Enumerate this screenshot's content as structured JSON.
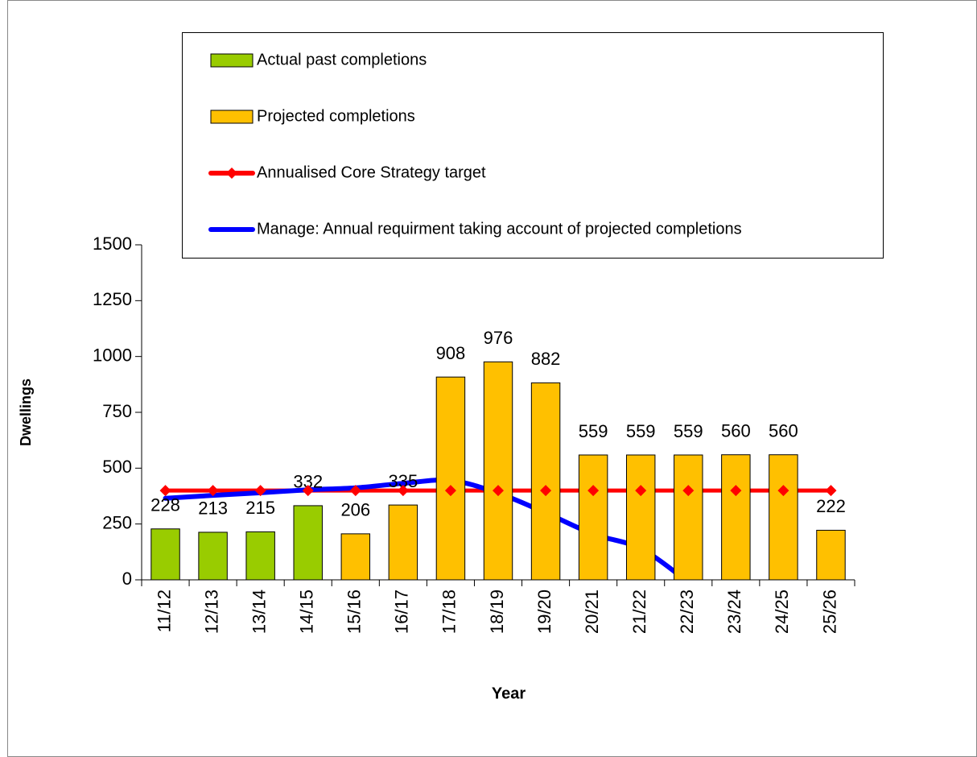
{
  "chart_data": {
    "type": "bar",
    "x_label": "Year",
    "y_label": "Dwellings",
    "categories": [
      "11/12",
      "12/13",
      "13/14",
      "14/15",
      "15/16",
      "16/17",
      "17/18",
      "18/19",
      "19/20",
      "20/21",
      "21/22",
      "22/23",
      "23/24",
      "24/25",
      "25/26"
    ],
    "series": [
      {
        "name": "Actual past completions",
        "type": "bar",
        "color": "#99cc00",
        "values": [
          228,
          213,
          215,
          332,
          null,
          null,
          null,
          null,
          null,
          null,
          null,
          null,
          null,
          null,
          null
        ]
      },
      {
        "name": "Projected completions",
        "type": "bar",
        "color": "#ffc000",
        "values": [
          null,
          null,
          null,
          null,
          206,
          335,
          908,
          976,
          882,
          559,
          559,
          559,
          560,
          560,
          222
        ]
      },
      {
        "name": "Annualised Core Strategy target",
        "type": "line",
        "color": "#ff0000",
        "values": [
          400,
          400,
          400,
          400,
          400,
          400,
          400,
          400,
          400,
          400,
          400,
          400,
          400,
          400,
          400
        ]
      },
      {
        "name": "Manage: Annual requirment taking account of projected completions",
        "type": "line",
        "color": "#0000ff",
        "values": [
          365,
          378,
          390,
          403,
          412,
          432,
          445,
          388,
          300,
          205,
          140,
          -10,
          null,
          null,
          null
        ]
      }
    ],
    "ylim": [
      0,
      1500
    ],
    "yticks": [
      0,
      250,
      500,
      750,
      1000,
      1250,
      1500
    ],
    "grid": false
  }
}
